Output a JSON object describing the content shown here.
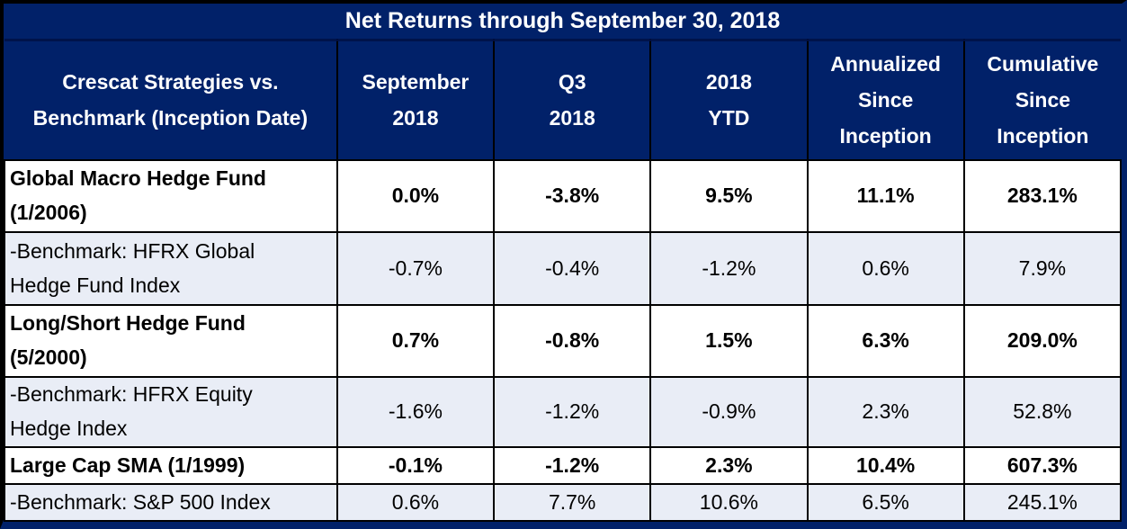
{
  "title": "Net Returns through September 30, 2018",
  "colors": {
    "navy": "#012169",
    "light-row": "#E9EDF6",
    "white-row": "#FFFFFF",
    "grid": "#000000",
    "text-light": "#FFFFFF",
    "text-dark": "#000000"
  },
  "chart_data": {
    "type": "table",
    "title": "Net Returns through September 30, 2018",
    "row_header": "Crescat Strategies vs.\nBenchmark (Inception Date)",
    "columns": [
      "September\n2018",
      "Q3\n2018",
      "2018\nYTD",
      "Annualized\nSince\nInception",
      "Cumulative\nSince\nInception"
    ],
    "rows": [
      {
        "label": "Global Macro Hedge Fund\n(1/2006)",
        "kind": "strategy",
        "values": [
          "0.0%",
          "-3.8%",
          "9.5%",
          "11.1%",
          "283.1%"
        ]
      },
      {
        "label": "-Benchmark: HFRX Global\nHedge Fund Index",
        "kind": "benchmark",
        "values": [
          "-0.7%",
          "-0.4%",
          "-1.2%",
          "0.6%",
          "7.9%"
        ]
      },
      {
        "label": "Long/Short Hedge Fund\n(5/2000)",
        "kind": "strategy",
        "values": [
          "0.7%",
          "-0.8%",
          "1.5%",
          "6.3%",
          "209.0%"
        ]
      },
      {
        "label": "-Benchmark: HFRX Equity\nHedge Index",
        "kind": "benchmark",
        "values": [
          "-1.6%",
          "-1.2%",
          "-0.9%",
          "2.3%",
          "52.8%"
        ]
      },
      {
        "label": "Large Cap SMA (1/1999)",
        "kind": "strategy",
        "values": [
          "-0.1%",
          "-1.2%",
          "2.3%",
          "10.4%",
          "607.3%"
        ]
      },
      {
        "label": "-Benchmark: S&P 500 Index",
        "kind": "benchmark",
        "values": [
          "0.6%",
          "7.7%",
          "10.6%",
          "6.5%",
          "245.1%"
        ]
      }
    ]
  }
}
